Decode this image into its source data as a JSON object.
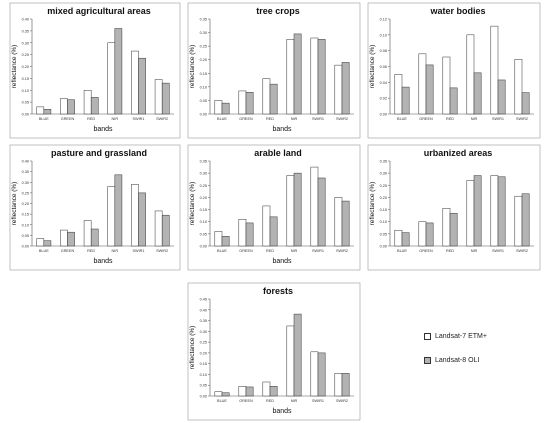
{
  "colors": {
    "landsat7": "#ffffff",
    "landsat8": "#b3b3b3",
    "outline": "#333333"
  },
  "legend": {
    "items": [
      {
        "label": "Landsat-7 ETM+",
        "color": "#ffffff"
      },
      {
        "label": "Landsat-8 OLI",
        "color": "#b3b3b3"
      }
    ]
  },
  "chart_data": [
    {
      "type": "bar",
      "title": "mixed agricultural areas",
      "xlabel": "bands",
      "ylabel": "reflectance (%)",
      "categories": [
        "BLUE",
        "GREEN",
        "RED",
        "NIR",
        "SWIR1",
        "SWIR2"
      ],
      "ylim": [
        0,
        0.4
      ],
      "yticks": [
        "0.00",
        "0.05",
        "0.10",
        "0.15",
        "0.20",
        "0.25",
        "0.30",
        "0.35",
        "0.40"
      ],
      "series": [
        {
          "name": "Landsat-7 ETM+",
          "values": [
            0.03,
            0.065,
            0.1,
            0.3,
            0.265,
            0.145
          ]
        },
        {
          "name": "Landsat-8 OLI",
          "values": [
            0.02,
            0.06,
            0.07,
            0.36,
            0.235,
            0.13
          ]
        }
      ]
    },
    {
      "type": "bar",
      "title": "tree crops",
      "xlabel": "bands",
      "ylabel": "reflectance (%)",
      "categories": [
        "BLUE",
        "GREEN",
        "RED",
        "NIR",
        "SWIR1",
        "SWIR2"
      ],
      "ylim": [
        0,
        0.35
      ],
      "yticks": [
        "0.00",
        "0.05",
        "0.10",
        "0.15",
        "0.20",
        "0.25",
        "0.30",
        "0.35"
      ],
      "series": [
        {
          "name": "Landsat-7 ETM+",
          "values": [
            0.05,
            0.085,
            0.13,
            0.275,
            0.28,
            0.18
          ]
        },
        {
          "name": "Landsat-8 OLI",
          "values": [
            0.04,
            0.08,
            0.11,
            0.295,
            0.275,
            0.19
          ]
        }
      ]
    },
    {
      "type": "bar",
      "title": "water bodies",
      "xlabel": "",
      "ylabel": "reflectance (%)",
      "categories": [
        "BLUE",
        "GREEN",
        "RED",
        "NIR",
        "SWIR1",
        "SWIR2"
      ],
      "ylim": [
        0,
        0.12
      ],
      "yticks": [
        "0.00",
        "0.02",
        "0.04",
        "0.06",
        "0.08",
        "0.10",
        "0.12"
      ],
      "series": [
        {
          "name": "Landsat-7 ETM+",
          "values": [
            0.05,
            0.076,
            0.072,
            0.1,
            0.111,
            0.069
          ]
        },
        {
          "name": "Landsat-8 OLI",
          "values": [
            0.034,
            0.062,
            0.033,
            0.052,
            0.043,
            0.027
          ]
        }
      ]
    },
    {
      "type": "bar",
      "title": "pasture and grassland",
      "xlabel": "bands",
      "ylabel": "reflectance (%)",
      "categories": [
        "BLUE",
        "GREEN",
        "RED",
        "NIR",
        "SWIR1",
        "SWIR2"
      ],
      "ylim": [
        0,
        0.4
      ],
      "yticks": [
        "0.00",
        "0.05",
        "0.10",
        "0.15",
        "0.20",
        "0.25",
        "0.30",
        "0.35",
        "0.40"
      ],
      "series": [
        {
          "name": "Landsat-7 ETM+",
          "values": [
            0.035,
            0.075,
            0.12,
            0.28,
            0.29,
            0.165
          ]
        },
        {
          "name": "Landsat-8 OLI",
          "values": [
            0.025,
            0.065,
            0.08,
            0.335,
            0.25,
            0.145
          ]
        }
      ]
    },
    {
      "type": "bar",
      "title": "arable land",
      "xlabel": "bands",
      "ylabel": "reflectance (%)",
      "categories": [
        "BLUE",
        "GREEN",
        "RED",
        "NIR",
        "SWIR1",
        "SWIR2"
      ],
      "ylim": [
        0,
        0.35
      ],
      "yticks": [
        "0.00",
        "0.05",
        "0.10",
        "0.15",
        "0.20",
        "0.25",
        "0.30",
        "0.35"
      ],
      "series": [
        {
          "name": "Landsat-7 ETM+",
          "values": [
            0.06,
            0.11,
            0.165,
            0.29,
            0.325,
            0.2
          ]
        },
        {
          "name": "Landsat-8 OLI",
          "values": [
            0.04,
            0.095,
            0.12,
            0.3,
            0.28,
            0.185
          ]
        }
      ]
    },
    {
      "type": "bar",
      "title": "urbanized areas",
      "xlabel": "",
      "ylabel": "reflectance (%)",
      "categories": [
        "BLUE",
        "GREEN",
        "RED",
        "NIR",
        "SWIR1",
        "SWIR2"
      ],
      "ylim": [
        0,
        0.35
      ],
      "yticks": [
        "0.00",
        "0.05",
        "0.10",
        "0.15",
        "0.20",
        "0.25",
        "0.30",
        "0.35"
      ],
      "series": [
        {
          "name": "Landsat-7 ETM+",
          "values": [
            0.065,
            0.1,
            0.155,
            0.27,
            0.29,
            0.205
          ]
        },
        {
          "name": "Landsat-8 OLI",
          "values": [
            0.055,
            0.095,
            0.135,
            0.29,
            0.285,
            0.215
          ]
        }
      ]
    },
    {
      "type": "bar",
      "title": "forests",
      "xlabel": "bands",
      "ylabel": "reflectance (%)",
      "categories": [
        "BLUE",
        "GREEN",
        "RED",
        "NIR",
        "SWIR1",
        "SWIR2"
      ],
      "ylim": [
        0,
        0.45
      ],
      "yticks": [
        "0.00",
        "0.05",
        "0.10",
        "0.15",
        "0.20",
        "0.25",
        "0.30",
        "0.35",
        "0.40",
        "0.45"
      ],
      "series": [
        {
          "name": "Landsat-7 ETM+",
          "values": [
            0.02,
            0.045,
            0.065,
            0.325,
            0.205,
            0.105
          ]
        },
        {
          "name": "Landsat-8 OLI",
          "values": [
            0.015,
            0.042,
            0.045,
            0.38,
            0.2,
            0.105
          ]
        }
      ]
    }
  ]
}
